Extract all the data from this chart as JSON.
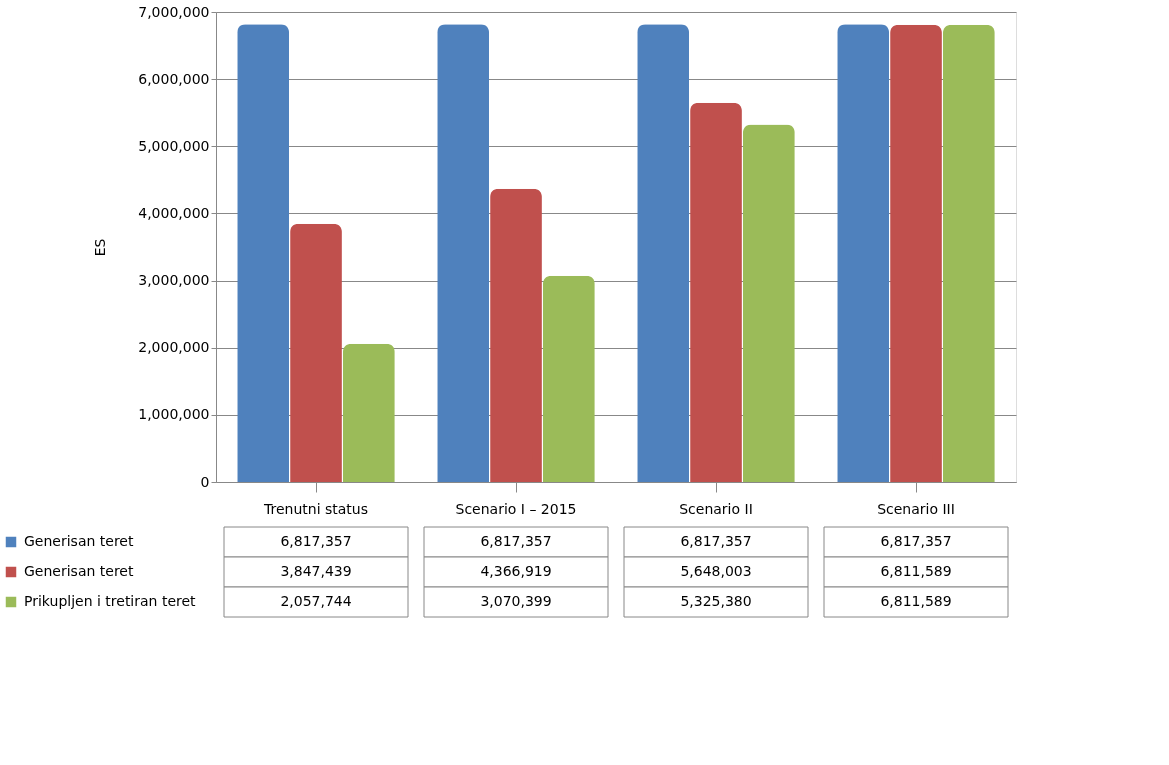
{
  "chart_data": {
    "type": "bar",
    "ylabel": "ES",
    "categories": [
      "Trenutni status",
      "Scenario I – 2015",
      "Scenario II",
      "Scenario III"
    ],
    "series": [
      {
        "name": "Generisan teret",
        "color": "#4f81bd",
        "values": [
          6817357,
          6817357,
          6817357,
          6817357
        ],
        "value_labels": [
          "6,817,357",
          "6,817,357",
          "6,817,357",
          "6,817,357"
        ]
      },
      {
        "name": "Generisan teret",
        "color": "#c0504d",
        "values": [
          3847439,
          4366919,
          5648003,
          6811589
        ],
        "value_labels": [
          "3,847,439",
          "4,366,919",
          "5,648,003",
          "6,811,589"
        ]
      },
      {
        "name": "Prikupljen i tretiran teret",
        "color": "#9bbb59",
        "values": [
          2057744,
          3070399,
          5325380,
          6811589
        ],
        "value_labels": [
          "2,057,744",
          "3,070,399",
          "5,325,380",
          "6,811,589"
        ]
      }
    ],
    "ylim": [
      0,
      7000000
    ],
    "yticks": [
      0,
      {
        "value": 1000000,
        "label": "1,000,000"
      },
      {
        "value": 2000000,
        "label": "2,000,000"
      },
      {
        "value": 3000000,
        "label": "3,000,000"
      },
      {
        "value": 4000000,
        "label": "4,000,000"
      },
      {
        "value": 5000000,
        "label": "5,000,000"
      },
      {
        "value": 6000000,
        "label": "6,000,000"
      },
      {
        "value": 7000000,
        "label": "7,000,000"
      }
    ],
    "grid": "y",
    "legend": "bottom"
  }
}
